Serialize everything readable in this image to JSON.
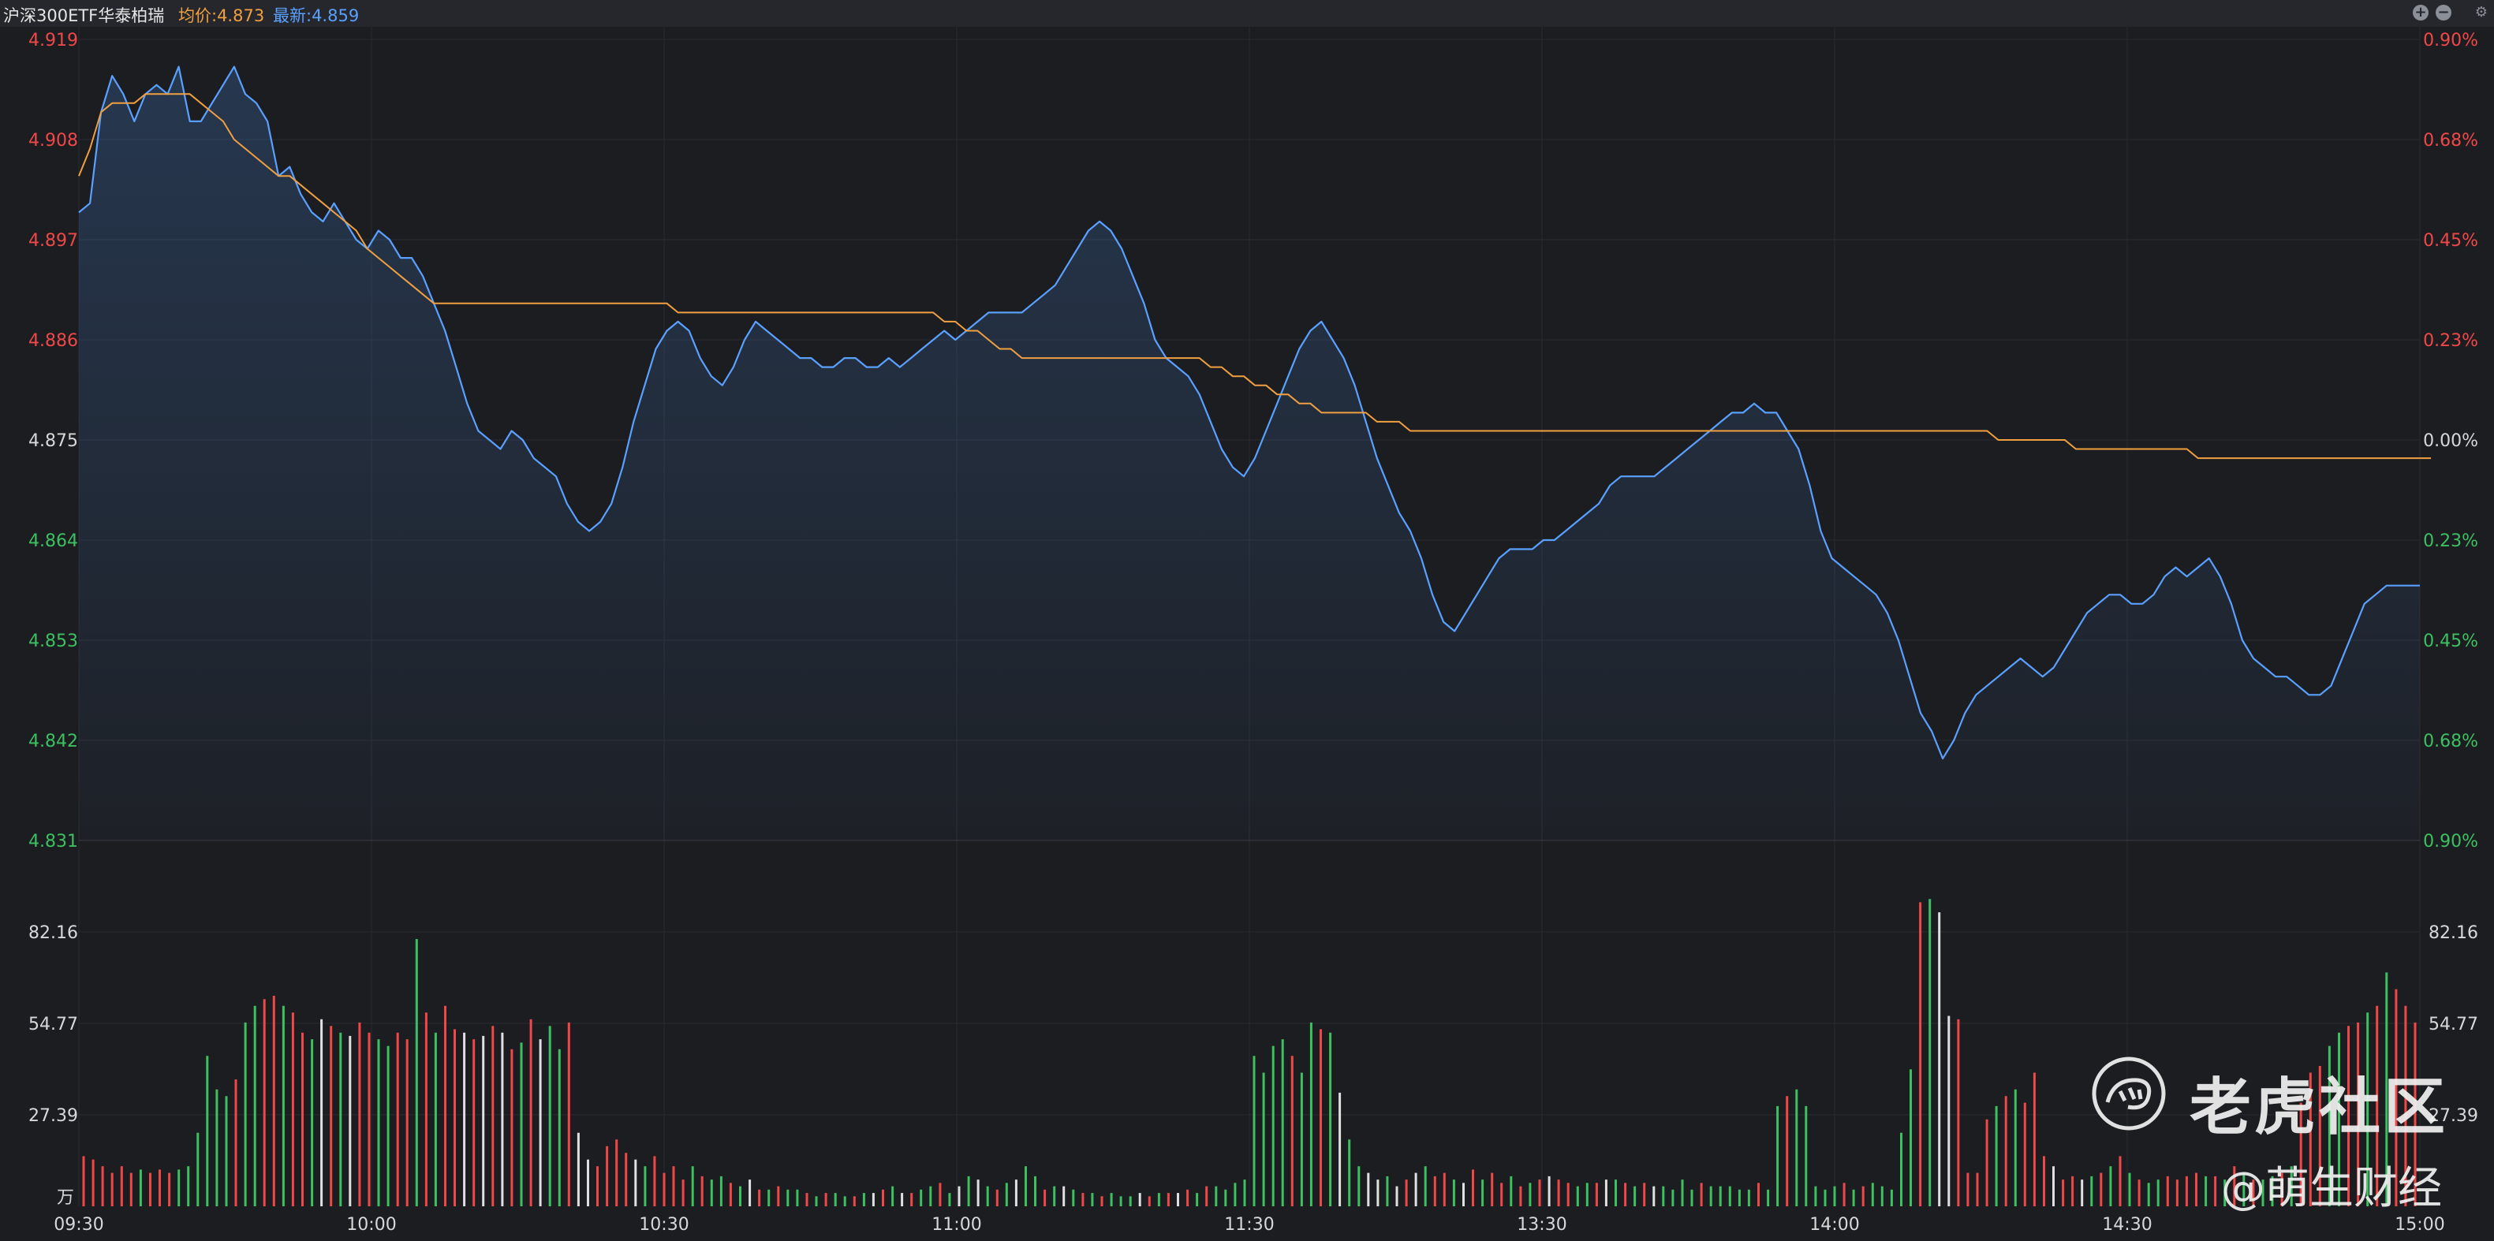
{
  "header": {
    "title": "沪深300ETF华泰柏瑞",
    "avg_label": "均价:4.873",
    "last_label": "最新:4.859",
    "controls": [
      "plus-icon",
      "minus-icon",
      "gear-icon"
    ]
  },
  "watermark": {
    "brand": "老虎社区",
    "author": "@萌生财经"
  },
  "colors": {
    "background": "#1c1d21",
    "price_line": "#5aa0ff",
    "avg_line": "#f0a040",
    "up": "#f04848",
    "down": "#3cc060",
    "neutral": "#e0e0e0",
    "grid": "#2a2c31"
  },
  "chart_data": [
    {
      "type": "line",
      "name": "intraday-price",
      "ylim": [
        4.831,
        4.919
      ],
      "y_ticks_left": [
        "4.919",
        "4.908",
        "4.897",
        "4.886",
        "4.875",
        "4.864",
        "4.853",
        "4.842",
        "4.831"
      ],
      "y_ticks_right": [
        "0.90%",
        "0.68%",
        "0.45%",
        "0.23%",
        "0.00%",
        "0.23%",
        "0.45%",
        "0.68%",
        "0.90%"
      ],
      "x_ticks": [
        "09:30",
        "10:00",
        "10:30",
        "11:00",
        "11:30",
        "13:30",
        "14:00",
        "14:30",
        "15:00"
      ],
      "reference_price": 4.875,
      "series": [
        {
          "role": "price",
          "values": [
            4.9,
            4.901,
            4.911,
            4.915,
            4.913,
            4.91,
            4.913,
            4.914,
            4.913,
            4.916,
            4.91,
            4.91,
            4.912,
            4.914,
            4.916,
            4.913,
            4.912,
            4.91,
            4.904,
            4.905,
            4.902,
            4.9,
            4.899,
            4.901,
            4.899,
            4.897,
            4.896,
            4.898,
            4.897,
            4.895,
            4.895,
            4.893,
            4.89,
            4.887,
            4.883,
            4.879,
            4.876,
            4.875,
            4.874,
            4.876,
            4.875,
            4.873,
            4.872,
            4.871,
            4.868,
            4.866,
            4.865,
            4.866,
            4.868,
            4.872,
            4.877,
            4.881,
            4.885,
            4.887,
            4.888,
            4.887,
            4.884,
            4.882,
            4.881,
            4.883,
            4.886,
            4.888,
            4.887,
            4.886,
            4.885,
            4.884,
            4.884,
            4.883,
            4.883,
            4.884,
            4.884,
            4.883,
            4.883,
            4.884,
            4.883,
            4.884,
            4.885,
            4.886,
            4.887,
            4.886,
            4.887,
            4.888,
            4.889,
            4.889,
            4.889,
            4.889,
            4.89,
            4.891,
            4.892,
            4.894,
            4.896,
            4.898,
            4.899,
            4.898,
            4.896,
            4.893,
            4.89,
            4.886,
            4.884,
            4.883,
            4.882,
            4.88,
            4.877,
            4.874,
            4.872,
            4.871,
            4.873,
            4.876,
            4.879,
            4.882,
            4.885,
            4.887,
            4.888,
            4.886,
            4.884,
            4.881,
            4.877,
            4.873,
            4.87,
            4.867,
            4.865,
            4.862,
            4.858,
            4.855,
            4.854,
            4.856,
            4.858,
            4.86,
            4.862,
            4.863,
            4.863,
            4.863,
            4.864,
            4.864,
            4.865,
            4.866,
            4.867,
            4.868,
            4.87,
            4.871,
            4.871,
            4.871,
            4.871,
            4.872,
            4.873,
            4.874,
            4.875,
            4.876,
            4.877,
            4.878,
            4.878,
            4.879,
            4.878,
            4.878,
            4.876,
            4.874,
            4.87,
            4.865,
            4.862,
            4.861,
            4.86,
            4.859,
            4.858,
            4.856,
            4.853,
            4.849,
            4.845,
            4.843,
            4.84,
            4.842,
            4.845,
            4.847,
            4.848,
            4.849,
            4.85,
            4.851,
            4.85,
            4.849,
            4.85,
            4.852,
            4.854,
            4.856,
            4.857,
            4.858,
            4.858,
            4.857,
            4.857,
            4.858,
            4.86,
            4.861,
            4.86,
            4.861,
            4.862,
            4.86,
            4.857,
            4.853,
            4.851,
            4.85,
            4.849,
            4.849,
            4.848,
            4.847,
            4.847,
            4.848,
            4.851,
            4.854,
            4.857,
            4.858,
            4.859,
            4.859,
            4.859,
            4.859
          ]
        },
        {
          "role": "average",
          "values": [
            4.904,
            4.907,
            4.911,
            4.912,
            4.912,
            4.912,
            4.913,
            4.913,
            4.913,
            4.913,
            4.913,
            4.912,
            4.911,
            4.91,
            4.908,
            4.907,
            4.906,
            4.905,
            4.904,
            4.904,
            4.903,
            4.902,
            4.901,
            4.9,
            4.899,
            4.898,
            4.896,
            4.895,
            4.894,
            4.893,
            4.892,
            4.891,
            4.89,
            4.89,
            4.89,
            4.89,
            4.89,
            4.89,
            4.89,
            4.89,
            4.89,
            4.89,
            4.89,
            4.89,
            4.89,
            4.89,
            4.89,
            4.89,
            4.89,
            4.89,
            4.89,
            4.89,
            4.89,
            4.89,
            4.889,
            4.889,
            4.889,
            4.889,
            4.889,
            4.889,
            4.889,
            4.889,
            4.889,
            4.889,
            4.889,
            4.889,
            4.889,
            4.889,
            4.889,
            4.889,
            4.889,
            4.889,
            4.889,
            4.889,
            4.889,
            4.889,
            4.889,
            4.889,
            4.888,
            4.888,
            4.887,
            4.887,
            4.886,
            4.885,
            4.885,
            4.884,
            4.884,
            4.884,
            4.884,
            4.884,
            4.884,
            4.884,
            4.884,
            4.884,
            4.884,
            4.884,
            4.884,
            4.884,
            4.884,
            4.884,
            4.884,
            4.884,
            4.883,
            4.883,
            4.882,
            4.882,
            4.881,
            4.881,
            4.88,
            4.88,
            4.879,
            4.879,
            4.878,
            4.878,
            4.878,
            4.878,
            4.878,
            4.877,
            4.877,
            4.877,
            4.876,
            4.876,
            4.876,
            4.876,
            4.876,
            4.876,
            4.876,
            4.876,
            4.876,
            4.876,
            4.876,
            4.876,
            4.876,
            4.876,
            4.876,
            4.876,
            4.876,
            4.876,
            4.876,
            4.876,
            4.876,
            4.876,
            4.876,
            4.876,
            4.876,
            4.876,
            4.876,
            4.876,
            4.876,
            4.876,
            4.876,
            4.876,
            4.876,
            4.876,
            4.876,
            4.876,
            4.876,
            4.876,
            4.876,
            4.876,
            4.876,
            4.876,
            4.876,
            4.876,
            4.876,
            4.876,
            4.876,
            4.876,
            4.876,
            4.876,
            4.876,
            4.876,
            4.876,
            4.875,
            4.875,
            4.875,
            4.875,
            4.875,
            4.875,
            4.875,
            4.874,
            4.874,
            4.874,
            4.874,
            4.874,
            4.874,
            4.874,
            4.874,
            4.874,
            4.874,
            4.874,
            4.873,
            4.873,
            4.873,
            4.873,
            4.873,
            4.873,
            4.873,
            4.873,
            4.873,
            4.873,
            4.873,
            4.873,
            4.873,
            4.873,
            4.873,
            4.873,
            4.873,
            4.873,
            4.873,
            4.873,
            4.873,
            4.873
          ]
        }
      ]
    },
    {
      "type": "bar",
      "name": "volume",
      "unit_label": "万",
      "ylim": [
        0,
        109.5
      ],
      "y_ticks": [
        "82.16",
        "54.77",
        "27.39"
      ],
      "values": [
        15,
        14,
        12,
        10,
        12,
        10,
        11,
        10,
        11,
        10,
        11,
        12,
        22,
        45,
        35,
        33,
        38,
        55,
        60,
        62,
        63,
        60,
        58,
        52,
        50,
        56,
        54,
        52,
        51,
        55,
        52,
        50,
        48,
        52,
        50,
        80,
        58,
        52,
        60,
        53,
        52,
        50,
        51,
        54,
        52,
        47,
        49,
        56,
        50,
        54,
        47,
        55,
        22,
        14,
        12,
        18,
        20,
        16,
        14,
        12,
        15,
        10,
        12,
        8,
        12,
        9,
        8,
        9,
        7,
        6,
        8,
        5,
        5,
        6,
        5,
        5,
        4,
        3,
        4,
        4,
        3,
        3,
        4,
        4,
        5,
        6,
        4,
        4,
        5,
        6,
        7,
        4,
        6,
        9,
        8,
        6,
        5,
        7,
        8,
        12,
        9,
        5,
        6,
        6,
        5,
        4,
        4,
        3,
        4,
        3,
        3,
        4,
        3,
        4,
        4,
        4,
        5,
        4,
        6,
        6,
        5,
        7,
        8,
        45,
        40,
        48,
        50,
        45,
        40,
        55,
        53,
        52,
        34,
        20,
        12,
        10,
        8,
        9,
        6,
        8,
        10,
        12,
        9,
        10,
        8,
        7,
        11,
        8,
        10,
        7,
        9,
        6,
        7,
        8,
        9,
        8,
        7,
        6,
        7,
        7,
        8,
        8,
        7,
        6,
        7,
        6,
        6,
        5,
        8,
        5,
        7,
        6,
        6,
        6,
        5,
        5,
        7,
        5,
        30,
        33,
        35,
        30,
        6,
        5,
        6,
        7,
        5,
        6,
        7,
        6,
        5,
        22,
        41,
        91,
        92,
        88,
        57,
        56,
        10,
        10,
        26,
        30,
        33,
        35,
        31,
        40,
        15,
        12,
        8,
        9,
        8,
        9,
        10,
        12,
        15,
        10,
        8,
        7,
        8,
        9,
        8,
        9,
        10,
        9,
        9,
        8,
        12,
        10,
        8,
        8,
        9,
        10,
        12,
        31,
        40,
        42,
        48,
        52,
        54,
        55,
        58,
        60,
        70,
        65,
        60,
        55
      ],
      "colors": [
        "up",
        "up",
        "up",
        "up",
        "up",
        "up",
        "down",
        "up",
        "up",
        "up",
        "down",
        "down",
        "down",
        "down",
        "down",
        "down",
        "up",
        "down",
        "down",
        "up",
        "up",
        "down",
        "up",
        "up",
        "down",
        "neutral",
        "up",
        "down",
        "neutral",
        "up",
        "up",
        "down",
        "down",
        "up",
        "up",
        "down",
        "up",
        "down",
        "up",
        "up",
        "neutral",
        "up",
        "neutral",
        "up",
        "neutral",
        "up",
        "down",
        "up",
        "neutral",
        "down",
        "down",
        "up",
        "neutral",
        "neutral",
        "up",
        "up",
        "up",
        "up",
        "neutral",
        "down",
        "up",
        "up",
        "up",
        "up",
        "down",
        "up",
        "down",
        "down",
        "up",
        "down",
        "neutral",
        "up",
        "down",
        "up",
        "down",
        "down",
        "up",
        "down",
        "up",
        "down",
        "down",
        "up",
        "down",
        "neutral",
        "up",
        "down",
        "neutral",
        "up",
        "down",
        "down",
        "up",
        "down",
        "neutral",
        "down",
        "neutral",
        "down",
        "up",
        "down",
        "neutral",
        "down",
        "down",
        "up",
        "down",
        "neutral",
        "down",
        "up",
        "down",
        "up",
        "down",
        "down",
        "down",
        "neutral",
        "up",
        "down",
        "up",
        "neutral",
        "up",
        "down",
        "up",
        "down",
        "down",
        "down",
        "down",
        "down",
        "down",
        "down",
        "down",
        "up",
        "down",
        "down",
        "up",
        "down",
        "neutral",
        "down",
        "down",
        "neutral",
        "neutral",
        "down",
        "neutral",
        "up",
        "neutral",
        "down",
        "up",
        "up",
        "down",
        "neutral",
        "up",
        "down",
        "up",
        "up",
        "down",
        "up",
        "down",
        "up",
        "neutral",
        "up",
        "up",
        "down",
        "down",
        "up",
        "neutral",
        "down",
        "up",
        "down",
        "up",
        "neutral",
        "down",
        "down",
        "down",
        "down",
        "up",
        "down",
        "down",
        "down",
        "down",
        "down",
        "up",
        "down",
        "down",
        "up",
        "down",
        "down",
        "down",
        "down",
        "down",
        "up",
        "down",
        "up",
        "down",
        "down",
        "down",
        "down",
        "down",
        "up",
        "down",
        "neutral",
        "neutral",
        "up",
        "up",
        "up",
        "up",
        "down",
        "up",
        "down",
        "up",
        "up",
        "up",
        "neutral",
        "up",
        "up",
        "neutral",
        "down",
        "up",
        "down",
        "up",
        "down",
        "up",
        "down",
        "down",
        "up",
        "up",
        "up",
        "up",
        "down",
        "up",
        "down",
        "up",
        "down",
        "up",
        "down",
        "down",
        "up",
        "down",
        "up",
        "up",
        "up",
        "down",
        "down",
        "up",
        "up",
        "down",
        "up",
        "down",
        "up",
        "up",
        "up",
        "up",
        "down",
        "down",
        "up",
        "down"
      ]
    }
  ]
}
